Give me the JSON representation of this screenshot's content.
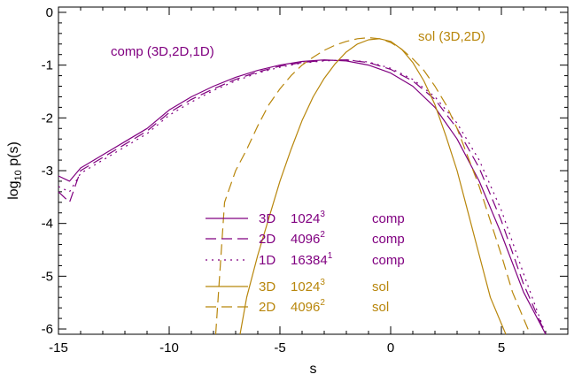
{
  "chart_data": {
    "type": "line",
    "xlabel": "s",
    "ylabel": {
      "base": "log",
      "sub": "10",
      "rest": " p(s)"
    },
    "xlim": [
      -15,
      8
    ],
    "ylim": [
      -6.1,
      0.1
    ],
    "xticks": [
      -15,
      -10,
      -5,
      0,
      5
    ],
    "yticks": [
      0,
      -1,
      -2,
      -3,
      -4,
      -5,
      -6
    ],
    "grid": false,
    "annotations": [
      {
        "text": "comp (3D,2D,1D)",
        "color": "#800080"
      },
      {
        "text": "sol (3D,2D)",
        "color": "#b8860b"
      }
    ],
    "series": [
      {
        "legend": {
          "dim": "3D",
          "res": "1024",
          "exp": "3",
          "kind": "comp"
        },
        "color": "#800080",
        "dash": "none",
        "x": [
          -15,
          -14.5,
          -14,
          -13,
          -12,
          -11,
          -10,
          -9,
          -8,
          -7,
          -6,
          -5,
          -4,
          -3,
          -2,
          -1,
          0,
          1,
          2,
          3,
          4,
          5,
          6,
          7
        ],
        "y": [
          -3.1,
          -3.2,
          -2.95,
          -2.7,
          -2.45,
          -2.2,
          -1.85,
          -1.6,
          -1.4,
          -1.23,
          -1.1,
          -1.0,
          -0.93,
          -0.9,
          -0.92,
          -1.0,
          -1.15,
          -1.4,
          -1.8,
          -2.4,
          -3.2,
          -4.2,
          -5.3,
          -6.1
        ]
      },
      {
        "legend": {
          "dim": "2D",
          "res": "4096",
          "exp": "2",
          "kind": "comp"
        },
        "color": "#800080",
        "dash": "12,6",
        "x": [
          -15,
          -14.5,
          -14,
          -13,
          -12,
          -11,
          -10,
          -9,
          -8,
          -7,
          -6,
          -5,
          -4,
          -3,
          -2,
          -1,
          0,
          1,
          2,
          3,
          4,
          5,
          6,
          7
        ],
        "y": [
          -3.4,
          -3.6,
          -3.0,
          -2.75,
          -2.5,
          -2.25,
          -1.9,
          -1.65,
          -1.45,
          -1.27,
          -1.13,
          -1.02,
          -0.95,
          -0.91,
          -0.9,
          -0.95,
          -1.08,
          -1.3,
          -1.65,
          -2.2,
          -2.95,
          -3.95,
          -5.15,
          -6.1
        ]
      },
      {
        "legend": {
          "dim": "1D",
          "res": "16384",
          "exp": "1",
          "kind": "comp"
        },
        "color": "#800080",
        "dash": "2,5",
        "x": [
          -15,
          -14.5,
          -14,
          -13,
          -12,
          -11,
          -10,
          -9,
          -8,
          -7,
          -6,
          -5,
          -4,
          -3,
          -2,
          -1,
          0,
          1,
          2,
          3,
          4,
          5,
          6,
          7
        ],
        "y": [
          -3.3,
          -3.4,
          -3.05,
          -2.8,
          -2.55,
          -2.3,
          -1.95,
          -1.7,
          -1.48,
          -1.3,
          -1.15,
          -1.04,
          -0.96,
          -0.92,
          -0.9,
          -0.94,
          -1.06,
          -1.27,
          -1.6,
          -2.1,
          -2.8,
          -3.75,
          -4.95,
          -6.1
        ]
      },
      {
        "legend": {
          "dim": "3D",
          "res": "1024",
          "exp": "3",
          "kind": "sol"
        },
        "color": "#b8860b",
        "dash": "none",
        "x": [
          -6.8,
          -6.5,
          -6.0,
          -5.5,
          -5.0,
          -4.5,
          -4.0,
          -3.5,
          -3.0,
          -2.5,
          -2.0,
          -1.5,
          -1.0,
          -0.5,
          0.0,
          0.5,
          1.0,
          1.5,
          2.0,
          2.5,
          3.0,
          3.5,
          4.0,
          4.5,
          5.0,
          5.2
        ],
        "y": [
          -6.1,
          -5.4,
          -4.6,
          -3.9,
          -3.2,
          -2.6,
          -2.05,
          -1.6,
          -1.25,
          -0.97,
          -0.75,
          -0.6,
          -0.52,
          -0.5,
          -0.55,
          -0.7,
          -0.95,
          -1.3,
          -1.75,
          -2.35,
          -3.0,
          -3.8,
          -4.6,
          -5.4,
          -5.9,
          -6.1
        ]
      },
      {
        "legend": {
          "dim": "2D",
          "res": "4096",
          "exp": "2",
          "kind": "sol"
        },
        "color": "#b8860b",
        "dash": "12,6",
        "x": [
          -7.9,
          -7.5,
          -7.0,
          -6.5,
          -6.0,
          -5.5,
          -5.0,
          -4.5,
          -4.0,
          -3.5,
          -3.0,
          -2.5,
          -2.0,
          -1.5,
          -1.0,
          -0.5,
          0.0,
          0.5,
          1.0,
          1.5,
          2.0,
          2.5,
          3.0,
          3.5,
          4.0,
          4.5,
          5.0,
          5.5,
          6.0,
          6.3
        ],
        "y": [
          -6.1,
          -3.6,
          -3.0,
          -2.6,
          -2.15,
          -1.75,
          -1.45,
          -1.2,
          -1.0,
          -0.85,
          -0.72,
          -0.62,
          -0.55,
          -0.5,
          -0.48,
          -0.5,
          -0.57,
          -0.7,
          -0.88,
          -1.1,
          -1.4,
          -1.75,
          -2.2,
          -2.75,
          -3.3,
          -3.95,
          -4.6,
          -5.3,
          -5.8,
          -6.1
        ]
      }
    ]
  }
}
